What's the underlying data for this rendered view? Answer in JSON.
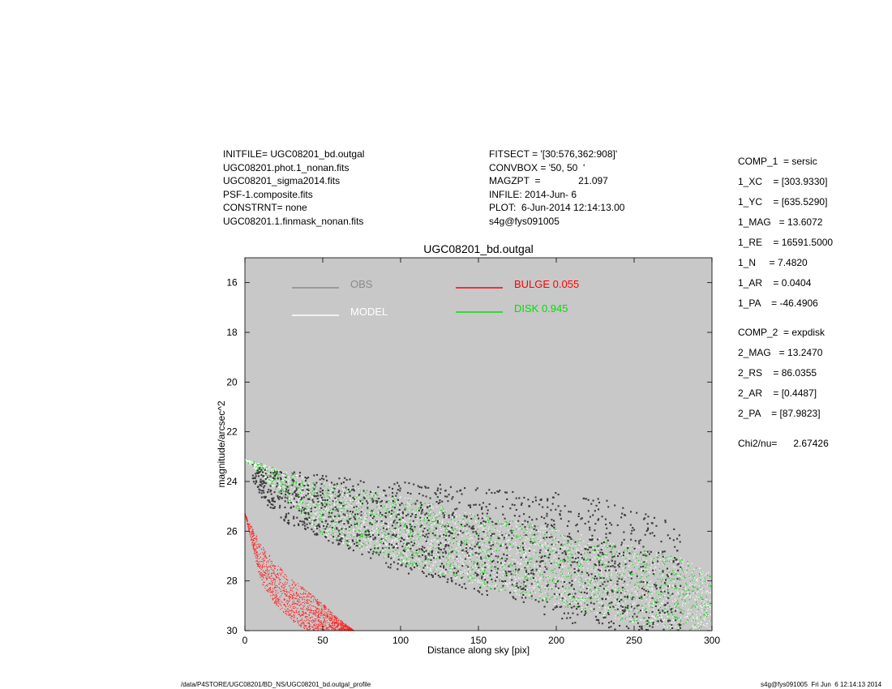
{
  "header": {
    "left_lines": [
      "INITFILE= UGC08201_bd.outgal",
      "UGC08201.phot.1_nonan.fits",
      "UGC08201_sigma2014.fits",
      "PSF-1.composite.fits",
      "CONSTRNT= none",
      "UGC08201.1.finmask_nonan.fits"
    ],
    "mid_lines": [
      "FITSECT = '[30:576,362:908]'",
      "CONVBOX = '50, 50  '",
      "MAGZPT  =              21.097",
      "INFILE: 2014-Jun- 6",
      "PLOT:  6-Jun-2014 12:14:13.00",
      "s4g@fys091005"
    ]
  },
  "params": [
    "COMP_1  = sersic",
    "1_XC    = [303.9330]",
    "1_YC    = [635.5290]",
    "1_MAG   = 13.6072",
    "1_RE    = 16591.5000",
    "1_N     = 7.4820",
    "1_AR    = 0.0404",
    "1_PA    = -46.4906",
    "COMP_2  = expdisk",
    "2_MAG   = 13.2470",
    "2_RS    = 86.0355",
    "2_AR    = [0.4487]",
    "2_PA    = [87.9823]",
    "Chi2/nu=      2.67426"
  ],
  "footer": {
    "path": "/data/P4STORE/UGC08201/BD_NS/UGC08201_bd.outgal_profile",
    "stamp": "s4g@fys091005  Fri Jun  6 12:14:13 2014"
  },
  "chart_data": {
    "type": "scatter",
    "title": "UGC08201_bd.outgal",
    "xlabel": "Distance along sky [pix]",
    "ylabel": "magnitude/arcsec^2",
    "xlim": [
      0,
      300
    ],
    "ylim": [
      15.0,
      30.0
    ],
    "y_inverted": true,
    "xticks": [
      0,
      50,
      100,
      150,
      200,
      250,
      300
    ],
    "yticks": [
      16,
      18,
      20,
      22,
      24,
      26,
      28,
      30
    ],
    "grid": false,
    "background": "#c8c8c8",
    "legend": [
      {
        "label": "OBS",
        "color": "#8a8a8a"
      },
      {
        "label": "MODEL",
        "color": "#ffffff"
      },
      {
        "label": "BULGE  0.055",
        "color": "#ff0000"
      },
      {
        "label": "DISK  0.945",
        "color": "#00e000"
      }
    ],
    "series": [
      {
        "name": "OBS",
        "color": "#3c3c3c",
        "x": [
          5,
          10,
          15,
          20,
          25,
          30,
          40,
          50,
          60,
          70,
          80,
          90,
          100,
          110,
          120,
          130,
          140,
          150,
          160,
          170,
          180,
          190,
          200,
          210,
          220,
          230,
          240,
          250,
          260,
          270,
          280
        ],
        "y_upper": [
          23.3,
          23.4,
          23.5,
          23.6,
          23.5,
          23.5,
          23.6,
          23.7,
          23.8,
          23.8,
          23.9,
          24.0,
          24.0,
          24.1,
          24.1,
          24.1,
          24.2,
          24.2,
          24.2,
          24.3,
          24.4,
          24.4,
          24.4,
          24.5,
          24.6,
          24.7,
          24.8,
          25.0,
          25.2,
          25.4,
          25.9
        ],
        "y_lower": [
          24.0,
          24.6,
          25.0,
          25.3,
          25.6,
          25.8,
          26.0,
          26.3,
          26.6,
          26.8,
          27.1,
          27.4,
          27.6,
          27.8,
          27.9,
          28.1,
          28.3,
          28.5,
          28.7,
          28.9,
          29.1,
          29.3,
          29.5,
          29.7,
          29.8,
          30.0,
          30.0,
          30.0,
          30.0,
          30.0,
          30.0
        ]
      },
      {
        "name": "MODEL",
        "color": "#ffffff",
        "x": [
          0,
          50,
          100,
          150,
          200,
          250,
          275,
          300
        ],
        "y_upper": [
          23.1,
          24.0,
          24.6,
          25.3,
          25.9,
          26.6,
          26.9,
          27.7
        ],
        "y_lower": [
          23.1,
          26.2,
          27.3,
          28.2,
          29.0,
          29.7,
          30.0,
          30.0
        ]
      },
      {
        "name": "DISK  0.945",
        "color": "#00d000",
        "x": [
          0,
          50,
          100,
          150,
          200,
          250,
          275,
          300
        ],
        "y_upper": [
          23.1,
          24.0,
          24.6,
          25.3,
          25.9,
          26.6,
          26.9,
          27.7
        ],
        "y_lower": [
          23.1,
          26.2,
          27.3,
          28.2,
          29.0,
          29.7,
          30.0,
          30.0
        ]
      },
      {
        "name": "BULGE  0.055",
        "color": "#ff2020",
        "x": [
          0,
          10,
          20,
          30,
          40,
          50,
          60,
          70
        ],
        "y_upper": [
          25.3,
          26.5,
          27.3,
          27.9,
          28.4,
          28.9,
          29.5,
          30.0
        ],
        "y_lower": [
          25.3,
          28.0,
          29.0,
          29.6,
          30.0,
          30.0,
          30.0,
          30.0
        ]
      }
    ]
  }
}
